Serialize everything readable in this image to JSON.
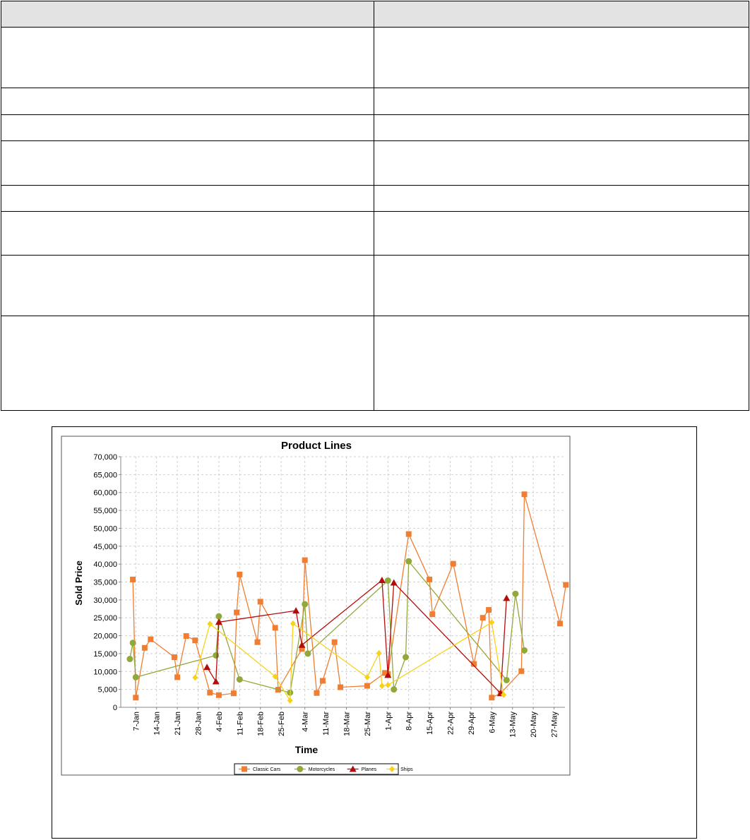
{
  "table": {
    "headers": [
      "",
      ""
    ],
    "rows": [
      [
        "",
        ""
      ],
      [
        "",
        ""
      ],
      [
        "",
        ""
      ],
      [
        "",
        ""
      ],
      [
        "",
        ""
      ],
      [
        "",
        ""
      ],
      [
        "",
        ""
      ],
      [
        "",
        ""
      ]
    ]
  },
  "chart_data": {
    "type": "line",
    "title": "Product Lines",
    "xlabel": "Time",
    "ylabel": "Sold Price",
    "ylim": [
      0,
      70000
    ],
    "yticks": [
      0,
      5000,
      10000,
      15000,
      20000,
      25000,
      30000,
      35000,
      40000,
      45000,
      50000,
      55000,
      60000,
      65000,
      70000
    ],
    "ytick_labels": [
      "0",
      "5,000",
      "10,000",
      "15,000",
      "20,000",
      "25,000",
      "30,000",
      "35,000",
      "40,000",
      "45,000",
      "50,000",
      "55,000",
      "60,000",
      "65,000",
      "70,000"
    ],
    "xticks": [
      "7-Jan",
      "14-Jan",
      "21-Jan",
      "28-Jan",
      "4-Feb",
      "11-Feb",
      "18-Feb",
      "25-Feb",
      "4-Mar",
      "11-Mar",
      "18-Mar",
      "25-Mar",
      "1-Apr",
      "8-Apr",
      "15-Apr",
      "22-Apr",
      "29-Apr",
      "6-May",
      "13-May",
      "20-May",
      "27-May"
    ],
    "grid": true,
    "legend_position": "bottom",
    "series": [
      {
        "name": "Classic Cars",
        "color": "#f07e32",
        "marker": "square",
        "points": [
          [
            "6-Jan",
            35700
          ],
          [
            "7-Jan",
            2700
          ],
          [
            "10-Jan",
            16600
          ],
          [
            "12-Jan",
            19000
          ],
          [
            "20-Jan",
            14000
          ],
          [
            "21-Jan",
            8400
          ],
          [
            "24-Jan",
            19900
          ],
          [
            "27-Jan",
            18700
          ],
          [
            "1-Feb",
            4100
          ],
          [
            "4-Feb",
            3400
          ],
          [
            "9-Feb",
            3900
          ],
          [
            "10-Feb",
            26500
          ],
          [
            "11-Feb",
            37100
          ],
          [
            "17-Feb",
            18200
          ],
          [
            "18-Feb",
            29500
          ],
          [
            "23-Feb",
            22200
          ],
          [
            "24-Feb",
            4900
          ],
          [
            "3-Mar",
            16300
          ],
          [
            "4-Mar",
            41100
          ],
          [
            "8-Mar",
            4000
          ],
          [
            "10-Mar",
            7400
          ],
          [
            "14-Mar",
            18200
          ],
          [
            "16-Mar",
            5600
          ],
          [
            "25-Mar",
            6000
          ],
          [
            "31-Mar",
            9600
          ],
          [
            "1-Apr",
            9300
          ],
          [
            "8-Apr",
            48400
          ],
          [
            "15-Apr",
            35700
          ],
          [
            "16-Apr",
            26000
          ],
          [
            "23-Apr",
            40100
          ],
          [
            "30-Apr",
            12100
          ],
          [
            "3-May",
            25000
          ],
          [
            "5-May",
            27200
          ],
          [
            "6-May",
            2700
          ],
          [
            "9-May",
            3900
          ],
          [
            "16-May",
            10100
          ],
          [
            "17-May",
            59500
          ],
          [
            "29-May",
            23400
          ],
          [
            "31-May",
            34200
          ]
        ]
      },
      {
        "name": "Motorcycles",
        "color": "#92a83a",
        "marker": "circle",
        "points": [
          [
            "5-Jan",
            13500
          ],
          [
            "6-Jan",
            18000
          ],
          [
            "7-Jan",
            8400
          ],
          [
            "3-Feb",
            14500
          ],
          [
            "4-Feb",
            25400
          ],
          [
            "11-Feb",
            7800
          ],
          [
            "28-Feb",
            4100
          ],
          [
            "4-Mar",
            28800
          ],
          [
            "5-Mar",
            15000
          ],
          [
            "1-Apr",
            35400
          ],
          [
            "3-Apr",
            5000
          ],
          [
            "7-Apr",
            14000
          ],
          [
            "8-Apr",
            40800
          ],
          [
            "11-May",
            7600
          ],
          [
            "14-May",
            31700
          ],
          [
            "17-May",
            15900
          ]
        ]
      },
      {
        "name": "Planes",
        "color": "#b30c0c",
        "marker": "triangle",
        "points": [
          [
            "31-Jan",
            11200
          ],
          [
            "3-Feb",
            7200
          ],
          [
            "4-Feb",
            23800
          ],
          [
            "1-Mar",
            27000
          ],
          [
            "3-Mar",
            17400
          ],
          [
            "30-Mar",
            35500
          ],
          [
            "1-Apr",
            9000
          ],
          [
            "3-Apr",
            34800
          ],
          [
            "9-May",
            3900
          ],
          [
            "11-May",
            30500
          ]
        ]
      },
      {
        "name": "Ships",
        "color": "#f7d21a",
        "marker": "diamond",
        "points": [
          [
            "27-Jan",
            8300
          ],
          [
            "1-Feb",
            23300
          ],
          [
            "23-Feb",
            8600
          ],
          [
            "28-Feb",
            1900
          ],
          [
            "29-Feb",
            23400
          ],
          [
            "25-Mar",
            8400
          ],
          [
            "29-Mar",
            15100
          ],
          [
            "30-Mar",
            6000
          ],
          [
            "1-Apr",
            6200
          ],
          [
            "6-May",
            23700
          ],
          [
            "10-May",
            3500
          ]
        ]
      }
    ]
  }
}
